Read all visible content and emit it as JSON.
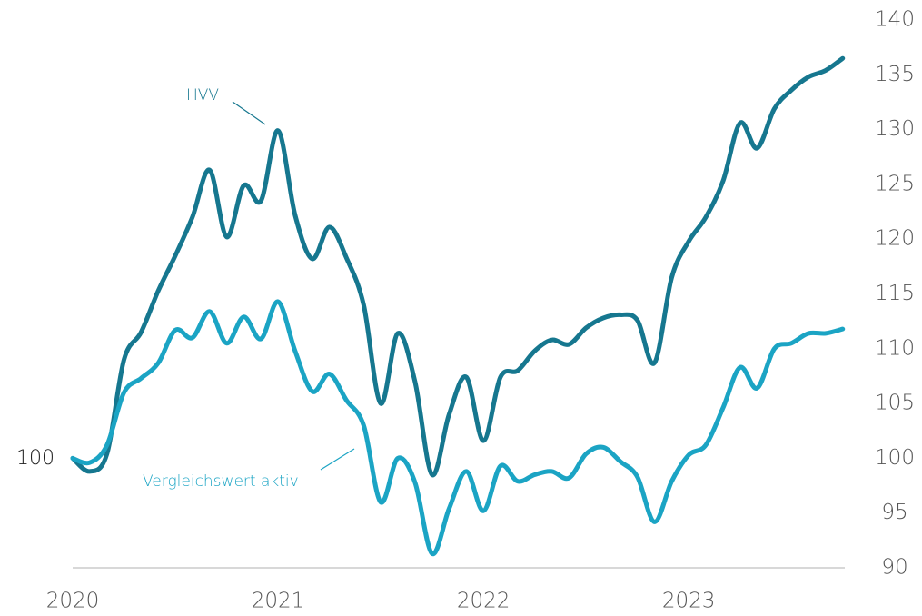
{
  "chart_data": {
    "type": "line",
    "annotations": [
      "100",
      "HVV",
      "Vergleichswert aktiv"
    ],
    "x": [
      2020,
      2020.083,
      2020.167,
      2020.25,
      2020.333,
      2020.417,
      2020.5,
      2020.583,
      2020.667,
      2020.75,
      2020.833,
      2020.917,
      2021,
      2021.083,
      2021.167,
      2021.25,
      2021.333,
      2021.417,
      2021.5,
      2021.583,
      2021.667,
      2021.75,
      2021.833,
      2021.917,
      2022,
      2022.083,
      2022.167,
      2022.25,
      2022.333,
      2022.417,
      2022.5,
      2022.583,
      2022.667,
      2022.75,
      2022.833,
      2022.917,
      2023,
      2023.083,
      2023.167,
      2023.25,
      2023.333,
      2023.417,
      2023.5,
      2023.583,
      2023.667,
      2023.75
    ],
    "series": [
      {
        "name": "HVV",
        "color": "#16778f",
        "values": [
          100,
          98.8,
          100.4,
          109,
          111.5,
          115.3,
          118.5,
          122,
          126.3,
          120.2,
          124.9,
          123.5,
          129.9,
          122.2,
          118.2,
          121.1,
          118.3,
          114,
          105,
          111.4,
          107,
          98.5,
          104,
          107.4,
          101.6,
          107.4,
          108,
          109.8,
          110.8,
          110.4,
          111.9,
          112.8,
          113.1,
          112.6,
          108.7,
          116.5,
          119.8,
          122,
          125.3,
          130.6,
          128.3,
          131.9,
          133.6,
          134.8,
          135.4,
          136.5
        ]
      },
      {
        "name": "Vergleichswert aktiv",
        "color": "#1ba4c4",
        "values": [
          100,
          99.6,
          101.2,
          106,
          107.3,
          108.7,
          111.7,
          111,
          113.4,
          110.5,
          112.9,
          110.9,
          114.3,
          109.8,
          106.1,
          107.7,
          105.3,
          103,
          96,
          100,
          97.8,
          91.3,
          95.4,
          98.8,
          95.2,
          99.3,
          97.9,
          98.5,
          98.8,
          98.2,
          100.4,
          101,
          99.7,
          98.3,
          94.2,
          97.9,
          100.3,
          101.2,
          104.6,
          108.3,
          106.4,
          110,
          110.5,
          111.4,
          111.4,
          111.8
        ]
      }
    ],
    "xlim": [
      2020,
      2023.76
    ],
    "xticks": [
      2020,
      2021,
      2022,
      2023
    ],
    "ylim": [
      90,
      140
    ],
    "yticks": [
      90,
      95,
      100,
      105,
      110,
      115,
      120,
      125,
      130,
      135,
      140
    ]
  }
}
